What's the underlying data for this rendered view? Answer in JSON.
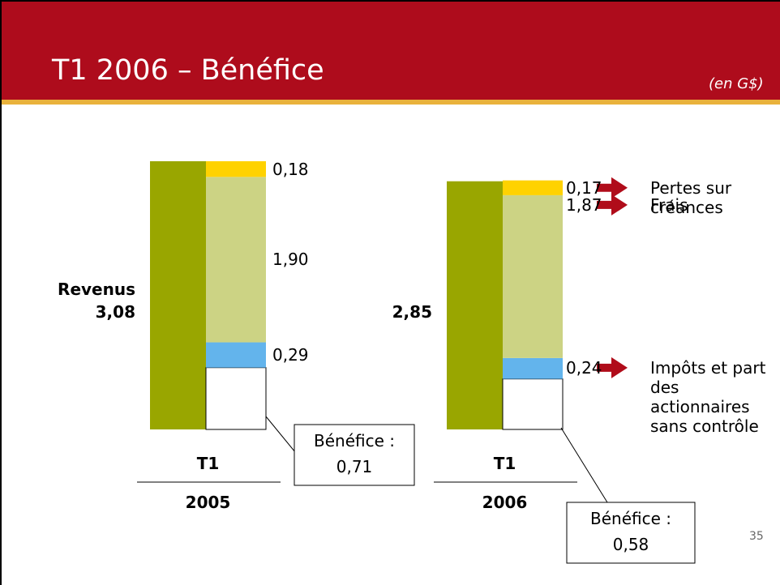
{
  "chart_data": {
    "type": "stacked_bar",
    "title": "T1 2006 – Bénéfice",
    "subtitle": "(en G$)",
    "page_number": "35",
    "categories": [
      "2005",
      "2006"
    ],
    "quarter_labels": [
      "T1",
      "T1"
    ],
    "totals": {
      "name": "Revenus",
      "color": "#99a600",
      "values": [
        3.08,
        2.85
      ],
      "value_labels": [
        "3,08",
        "2,85"
      ]
    },
    "series": [
      {
        "name": "Bénéfice :",
        "color": "#ffffff",
        "values": [
          0.71,
          0.58
        ],
        "value_labels": [
          "0,71",
          "0,58"
        ]
      },
      {
        "name": "Impôts et part des actionnaires sans contrôle",
        "color": "#63b4ec",
        "values": [
          0.29,
          0.24
        ],
        "value_labels": [
          "0,29",
          "0,24"
        ]
      },
      {
        "name": "Frais",
        "color": "#ccd384",
        "values": [
          1.9,
          1.87
        ],
        "value_labels": [
          "1,90",
          "1,87"
        ]
      },
      {
        "name": "Pertes sur créances",
        "color": "#ffd200",
        "values": [
          0.18,
          0.17
        ],
        "value_labels": [
          "0,18",
          "0,17"
        ]
      }
    ]
  }
}
